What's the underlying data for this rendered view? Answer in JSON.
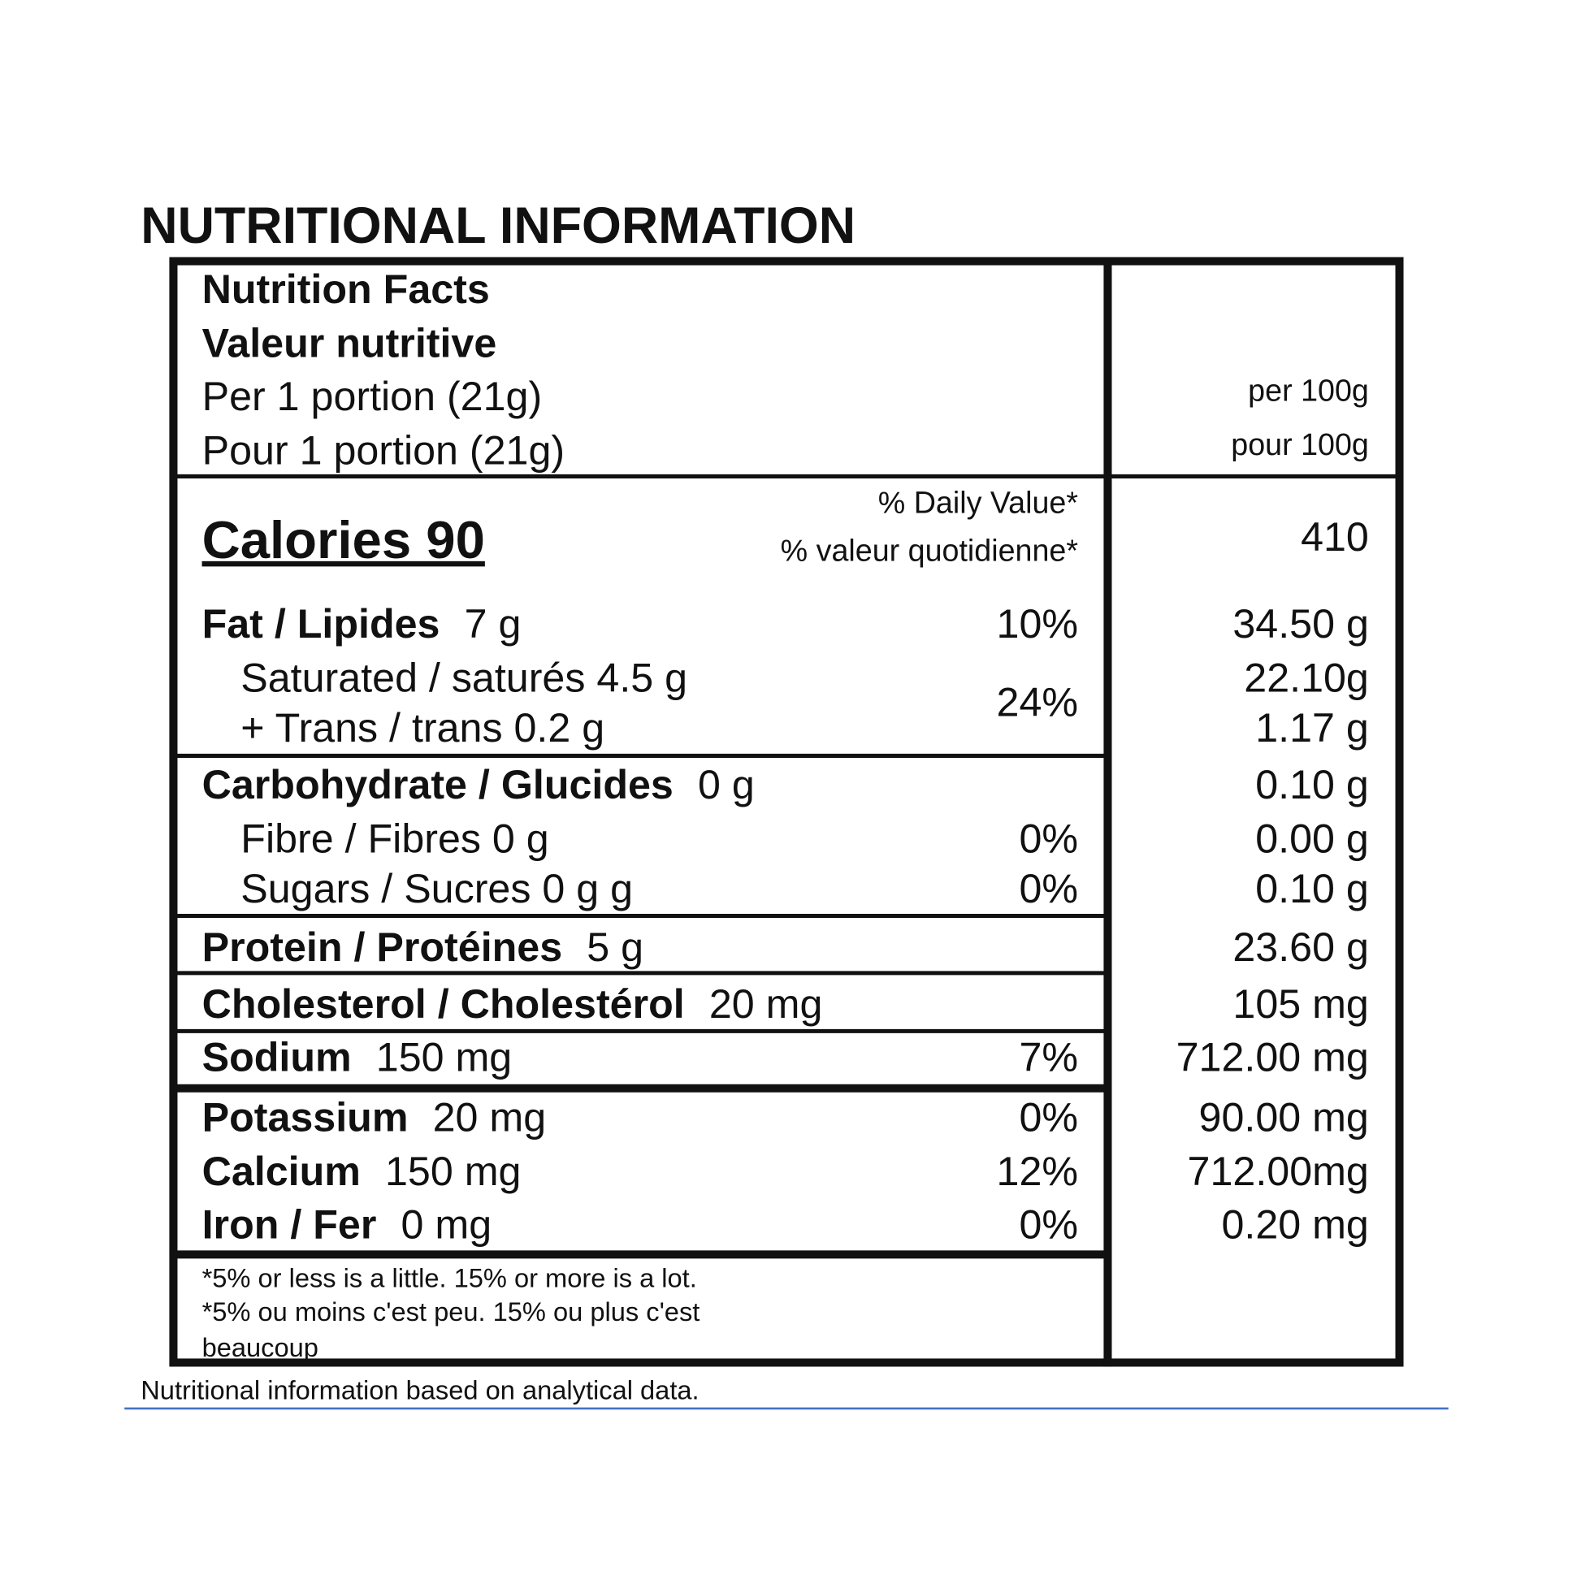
{
  "title": "NUTRITIONAL INFORMATION",
  "header": {
    "line1": "Nutrition Facts",
    "line2": "Valeur nutritive",
    "portion_en": "Per 1 portion (21g)",
    "portion_fr": "Pour 1 portion (21g)",
    "per100_en": "per 100g",
    "per100_fr": "pour 100g"
  },
  "calories": {
    "label": "Calories 90",
    "dv_en": "% Daily Value*",
    "dv_fr": "% valeur quotidienne*",
    "per_100g": "410"
  },
  "rows": [
    {
      "name": "Fat / Lipides",
      "amount": "7 g",
      "daily_value": "10%",
      "per_100g": "34.50 g"
    },
    {
      "name": "Saturated / saturés 4.5 g",
      "daily_value": "24%",
      "per_100g": "22.10g"
    },
    {
      "name": "+ Trans / trans  0.2 g",
      "per_100g": "1.17 g"
    },
    {
      "name": "Carbohydrate / Glucides",
      "amount": "0 g",
      "per_100g": "0.10 g"
    },
    {
      "name": "Fibre / Fibres  0 g",
      "daily_value": "0%",
      "per_100g": "0.00 g"
    },
    {
      "name": "Sugars / Sucres  0 g g",
      "daily_value": "0%",
      "per_100g": "0.10 g"
    },
    {
      "name": "Protein / Protéines",
      "amount": "5 g",
      "per_100g": "23.60 g"
    },
    {
      "name": "Cholesterol / Cholestérol",
      "amount": "20 mg",
      "per_100g": "105 mg"
    },
    {
      "name": "Sodium",
      "amount": "150 mg",
      "daily_value": "7%",
      "per_100g": "712.00 mg"
    },
    {
      "name": "Potassium",
      "amount": "20 mg",
      "daily_value": "0%",
      "per_100g": "90.00 mg"
    },
    {
      "name": "Calcium",
      "amount": "150 mg",
      "daily_value": "12%",
      "per_100g": "712.00mg"
    },
    {
      "name": "Iron / Fer",
      "amount": "0 mg",
      "daily_value": "0%",
      "per_100g": "0.20 mg"
    }
  ],
  "footnote": [
    "*5% or less is a little. 15% or more is a lot.",
    "*5% ou moins c'est peu. 15% ou plus c'est",
    "beaucoup"
  ],
  "source_note": "Nutritional information based on analytical data."
}
